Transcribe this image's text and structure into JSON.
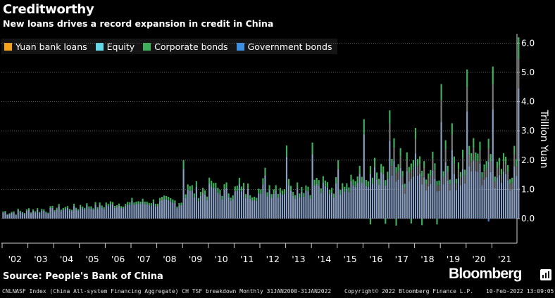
{
  "header": {
    "title": "Creditworthy",
    "subtitle": "New loans drives a record expansion in credit in China"
  },
  "legend": [
    {
      "label": "Yuan bank loans",
      "color": "#f7a21b"
    },
    {
      "label": "Equity",
      "color": "#63d8e8"
    },
    {
      "label": "Corporate bonds",
      "color": "#3fb05b"
    },
    {
      "label": "Government bonds",
      "color": "#3d8fe0"
    }
  ],
  "source": "Source: People's Bank of China",
  "brand": "Bloomberg",
  "footer": {
    "left": "CNLNASF Index (China All-system Financing Aggregate) CH TSF breakdown  Monthly 31JAN2000-31JAN2022",
    "middle": "Copyright© 2022 Bloomberg Finance L.P.",
    "right": "10-Feb-2022 13:09:05"
  },
  "chart_data": {
    "type": "bar",
    "stacked": true,
    "title": "Creditworthy",
    "ylabel": "Trillion Yuan",
    "ylim": [
      -0.6,
      6.2
    ],
    "y_ticks": [
      "0.0",
      "1.0",
      "2.0",
      "3.0",
      "4.0",
      "5.0",
      "6.0"
    ],
    "x_ticks": [
      "'02",
      "'03",
      "'04",
      "'05",
      "'06",
      "'07",
      "'08",
      "'09",
      "'10",
      "'11",
      "'12",
      "'13",
      "'14",
      "'15",
      "'16",
      "'17",
      "'18",
      "'19",
      "'20",
      "'21"
    ],
    "x_period": "monthly Jan 2002 - Jan 2022",
    "y_axis_position": "right",
    "grid": "horizontal dotted",
    "legend_position": "top-left",
    "series": [
      {
        "name": "Yuan bank loans",
        "color": "#f7a21b",
        "values": "approx. monthly totals rising from ~0.1-0.3 (2002) to ~0.8-2.0 (2009-2014), ~1.0-3.0 (2015-2019) and peaks ~4.3 (Jan 2019), ~5.0 (Jan 2020), ~4.7 (Jan 2021), ~5.5 (Jan 2022)"
      },
      {
        "name": "Equity",
        "color": "#63d8e8",
        "values": "small, ~0.0-0.1"
      },
      {
        "name": "Corporate bonds",
        "color": "#3fb05b",
        "values": "~0.0-0.5, occasionally negative to ~-0.2"
      },
      {
        "name": "Government bonds",
        "color": "#3d8fe0",
        "values": "~0.0-0.9 from 2018 onward"
      }
    ]
  }
}
